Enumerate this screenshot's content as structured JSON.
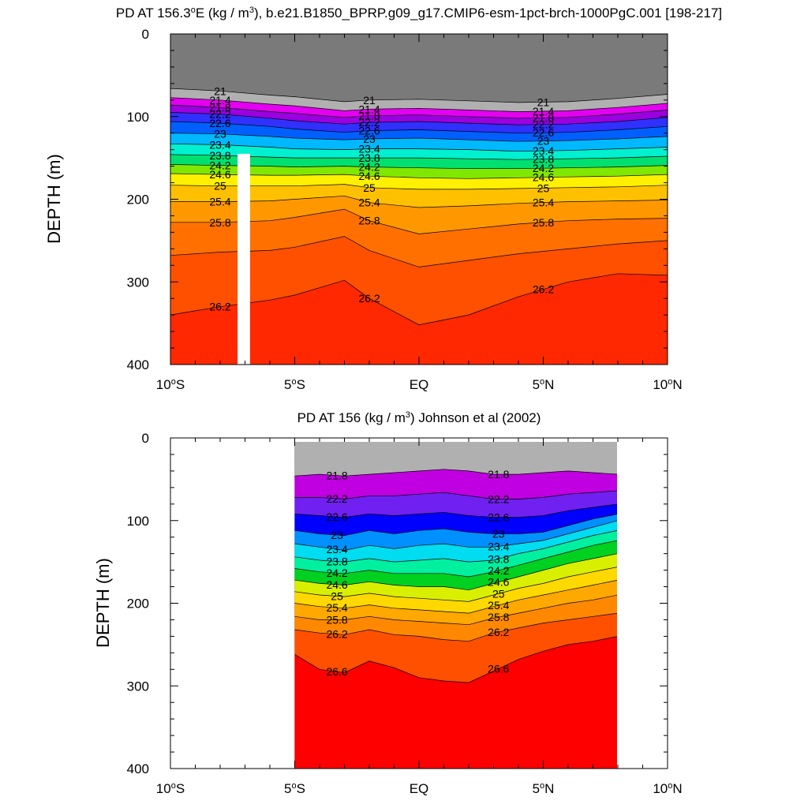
{
  "chart_data": [
    {
      "type": "contour",
      "title": "PD AT 156.3°E (kg / m3), b.e21.B1850_BPRP.g09_g17.CMIP6-esm-1pct-brch-1000PgC.001 [198-217]",
      "title_main": "PD AT 156.3",
      "title_degree": "o",
      "title_mid": "E (kg / m",
      "title_exp": "3",
      "title_end": "), b.e21.B1850_BPRP.g09_g17.CMIP6-esm-1pct-brch-1000PgC.001 [198-217]",
      "ylabel": "DEPTH (m)",
      "xlim": [
        -10,
        10
      ],
      "ylim": [
        0,
        400
      ],
      "y_inverted": true,
      "x_ticks": [
        {
          "value": -10,
          "num": "10",
          "sup": "o",
          "suffix": "S"
        },
        {
          "value": -5,
          "num": "5",
          "sup": "o",
          "suffix": "S"
        },
        {
          "value": 0,
          "num": "EQ",
          "sup": "",
          "suffix": ""
        },
        {
          "value": 5,
          "num": "5",
          "sup": "o",
          "suffix": "N"
        },
        {
          "value": 10,
          "num": "10",
          "sup": "o",
          "suffix": "N"
        }
      ],
      "y_ticks": [
        "0",
        "100",
        "200",
        "300",
        "400"
      ],
      "y_tick_values": [
        0,
        100,
        200,
        300,
        400
      ],
      "levels": [
        20.8,
        21.0,
        21.2,
        21.4,
        21.6,
        21.8,
        22.0,
        22.2,
        22.4,
        22.6,
        22.8,
        23.0,
        23.2,
        23.4,
        23.6,
        23.8,
        24.0,
        24.2,
        24.4,
        24.6,
        24.8,
        25.0,
        25.2,
        25.4,
        25.6,
        25.8,
        26.0,
        26.2,
        26.4,
        26.6
      ],
      "level_colors": [
        "#7a7a7a",
        "#b0b0b0",
        "#ff00ff",
        "#e400f0",
        "#c000e0",
        "#9a00e0",
        "#7020f0",
        "#3030ff",
        "#0000ff",
        "#0060ff",
        "#0090ff",
        "#00b8ff",
        "#00dcf0",
        "#00f0d0",
        "#00f0a0",
        "#00e070",
        "#00d020",
        "#80e800",
        "#d8f000",
        "#fff000",
        "#ffd800",
        "#ffc000",
        "#ffa800",
        "#ff9800",
        "#ff8800",
        "#ff7000",
        "#ff5000",
        "#ff2800",
        "#ff0000",
        "#d00000"
      ],
      "below_min_color": "#7a7a7a",
      "missing_region": {
        "lat_range": [
          -7.3,
          -6.8
        ],
        "depth_range": [
          145,
          400
        ],
        "color": "#ffffff"
      },
      "isopycnal_depths": {
        "lat": [
          -10,
          -8,
          -6,
          -5,
          -3,
          -2,
          0,
          2,
          4,
          6,
          8,
          10
        ],
        "rho": {
          "21.0": [
            66,
            69,
            74,
            76,
            82,
            80,
            79,
            81,
            83,
            82,
            78,
            73
          ],
          "21.4": [
            77,
            80,
            85,
            87,
            93,
            91,
            90,
            92,
            94,
            93,
            89,
            84
          ],
          "21.8": [
            86,
            89,
            94,
            96,
            101,
            99,
            98,
            100,
            102,
            101,
            97,
            92
          ],
          "22.2": [
            95,
            97,
            102,
            105,
            109,
            107,
            106,
            108,
            110,
            109,
            106,
            101
          ],
          "22.6": [
            106,
            108,
            112,
            115,
            119,
            117,
            116,
            118,
            120,
            119,
            116,
            112
          ],
          "23.0": [
            120,
            121,
            124,
            126,
            128,
            127,
            126,
            128,
            130,
            129,
            127,
            124
          ],
          "23.4": [
            133,
            134,
            137,
            139,
            140,
            139,
            139,
            140,
            142,
            141,
            139,
            137
          ],
          "23.8": [
            146,
            147,
            149,
            150,
            150,
            150,
            150,
            151,
            152,
            151,
            150,
            148
          ],
          "24.2": [
            158,
            159,
            160,
            161,
            160,
            161,
            162,
            163,
            163,
            162,
            161,
            159
          ],
          "24.6": [
            169,
            170,
            171,
            171,
            170,
            172,
            174,
            175,
            174,
            173,
            172,
            170
          ],
          "25.0": [
            183,
            184,
            184,
            184,
            182,
            186,
            188,
            188,
            187,
            186,
            185,
            183
          ],
          "25.4": [
            203,
            203,
            202,
            200,
            196,
            204,
            210,
            208,
            205,
            203,
            202,
            201
          ],
          "25.8": [
            228,
            228,
            226,
            222,
            212,
            226,
            242,
            236,
            230,
            226,
            224,
            223
          ],
          "26.0": [
            268,
            264,
            262,
            258,
            245,
            262,
            282,
            274,
            266,
            260,
            254,
            250
          ],
          "26.2": [
            340,
            330,
            322,
            316,
            298,
            320,
            352,
            340,
            318,
            300,
            290,
            292
          ]
        }
      },
      "contour_labels": [
        "21",
        "21.4",
        "21.8",
        "22.2",
        "22.6",
        "23",
        "23.4",
        "23.8",
        "24.2",
        "24.6",
        "25",
        "25.4",
        "25.8",
        "26.2"
      ]
    },
    {
      "type": "contour",
      "title": "PD AT 156 (kg / m3) Johnson et al (2002)",
      "title_main": "PD AT 156 (kg / m",
      "title_exp": "3",
      "title_end": ") Johnson et al (2002)",
      "ylabel": "DEPTH (m)",
      "xlim": [
        -10,
        10
      ],
      "ylim": [
        0,
        400
      ],
      "y_inverted": true,
      "data_lat_range": [
        -5,
        8
      ],
      "data_depth_range": [
        10,
        400
      ],
      "x_ticks": [
        {
          "value": -10,
          "num": "10",
          "sup": "o",
          "suffix": "S"
        },
        {
          "value": -5,
          "num": "5",
          "sup": "o",
          "suffix": "S"
        },
        {
          "value": 0,
          "num": "EQ",
          "sup": "",
          "suffix": ""
        },
        {
          "value": 5,
          "num": "5",
          "sup": "o",
          "suffix": "N"
        },
        {
          "value": 10,
          "num": "10",
          "sup": "o",
          "suffix": "N"
        }
      ],
      "y_ticks": [
        "0",
        "100",
        "200",
        "300",
        "400"
      ],
      "y_tick_values": [
        0,
        100,
        200,
        300,
        400
      ],
      "levels": [
        21.4,
        21.6,
        21.8,
        22.0,
        22.2,
        22.4,
        22.6,
        22.8,
        23.0,
        23.2,
        23.4,
        23.6,
        23.8,
        24.0,
        24.2,
        24.4,
        24.6,
        24.8,
        25.0,
        25.2,
        25.4,
        25.6,
        25.8,
        26.0,
        26.2,
        26.4,
        26.6,
        26.8
      ],
      "level_colors": [
        "#ff00ff",
        "#e400f0",
        "#c000e0",
        "#9a00e0",
        "#7020f0",
        "#3030ff",
        "#0000ff",
        "#0060ff",
        "#0090ff",
        "#00b8ff",
        "#00dcf0",
        "#00f0d0",
        "#00f0a0",
        "#00e070",
        "#00d020",
        "#80e800",
        "#d8f000",
        "#fff000",
        "#ffd800",
        "#ffc000",
        "#ffa800",
        "#ff9800",
        "#ff8800",
        "#ff7000",
        "#ff5000",
        "#ff2800",
        "#ff0000",
        "#d00000"
      ],
      "below_min_color": "#b0b0b0",
      "isopycnal_depths": {
        "lat": [
          -5,
          -4,
          -3,
          -2,
          -1,
          0,
          1,
          2,
          3,
          4,
          5,
          6,
          7,
          8
        ],
        "rho": {
          "21.8": [
            46,
            44,
            46,
            44,
            42,
            40,
            38,
            40,
            44,
            44,
            42,
            40,
            42,
            44
          ],
          "22.2": [
            72,
            72,
            74,
            70,
            70,
            68,
            66,
            70,
            74,
            74,
            72,
            68,
            66,
            64
          ],
          "22.6": [
            92,
            94,
            96,
            92,
            94,
            92,
            90,
            94,
            96,
            96,
            94,
            88,
            84,
            80
          ],
          "23.0": [
            112,
            116,
            118,
            112,
            116,
            112,
            110,
            114,
            116,
            116,
            114,
            106,
            98,
            92
          ],
          "23.4": [
            128,
            132,
            136,
            130,
            134,
            130,
            128,
            132,
            132,
            128,
            124,
            116,
            108,
            100
          ],
          "23.8": [
            144,
            148,
            150,
            146,
            150,
            148,
            146,
            150,
            148,
            140,
            134,
            126,
            118,
            112
          ],
          "24.2": [
            158,
            162,
            164,
            160,
            164,
            164,
            164,
            168,
            162,
            154,
            146,
            138,
            130,
            124
          ],
          "24.6": [
            172,
            176,
            178,
            174,
            178,
            180,
            180,
            184,
            176,
            168,
            160,
            152,
            146,
            140
          ],
          "25.0": [
            186,
            190,
            192,
            188,
            192,
            194,
            196,
            198,
            190,
            182,
            176,
            168,
            162,
            156
          ],
          "25.4": [
            200,
            204,
            206,
            202,
            206,
            208,
            210,
            212,
            204,
            196,
            190,
            184,
            178,
            172
          ],
          "25.8": [
            216,
            220,
            220,
            216,
            220,
            222,
            224,
            226,
            218,
            212,
            206,
            200,
            196,
            190
          ],
          "26.2": [
            232,
            236,
            238,
            232,
            238,
            240,
            244,
            246,
            236,
            230,
            224,
            220,
            216,
            212
          ],
          "26.6": [
            262,
            280,
            284,
            270,
            278,
            290,
            294,
            296,
            282,
            268,
            258,
            250,
            246,
            240
          ]
        }
      },
      "contour_labels": [
        "21.8",
        "22.2",
        "22.6",
        "23",
        "23.4",
        "23.8",
        "24.2",
        "24.6",
        "25",
        "25.4",
        "25.8",
        "26.2",
        "26.6"
      ]
    }
  ]
}
